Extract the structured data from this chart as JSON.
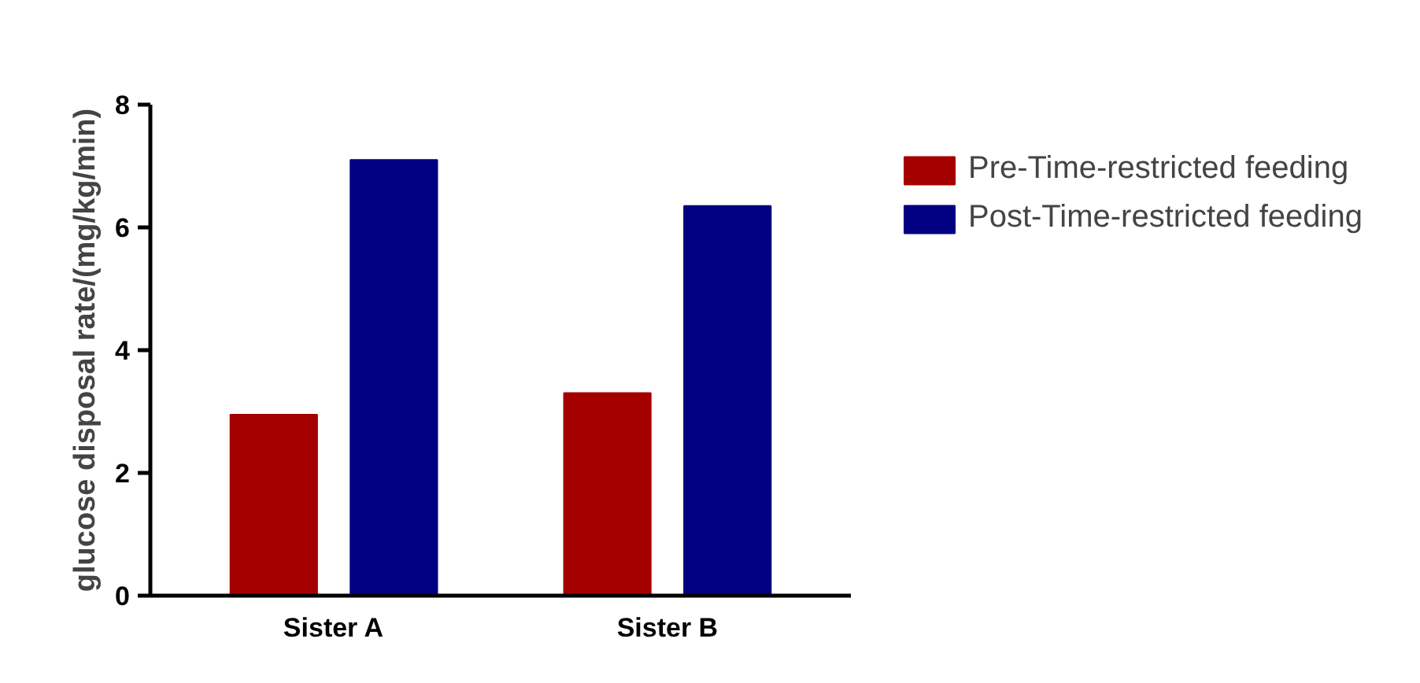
{
  "chart_data": {
    "type": "bar",
    "ylabel": "glucose disposal rate/(mg/kg/min)",
    "categories": [
      "Sister A",
      "Sister B"
    ],
    "series": [
      {
        "name": "Pre-Time-restricted feeding",
        "color": "#a50000",
        "values": [
          2.95,
          3.3
        ]
      },
      {
        "name": "Post-Time-restricted feeding",
        "color": "#000080",
        "values": [
          7.1,
          6.35
        ]
      }
    ],
    "ylim": [
      0,
      8
    ],
    "yticks": [
      0,
      2,
      4,
      6,
      8
    ],
    "grid": false,
    "legend": "top right"
  }
}
